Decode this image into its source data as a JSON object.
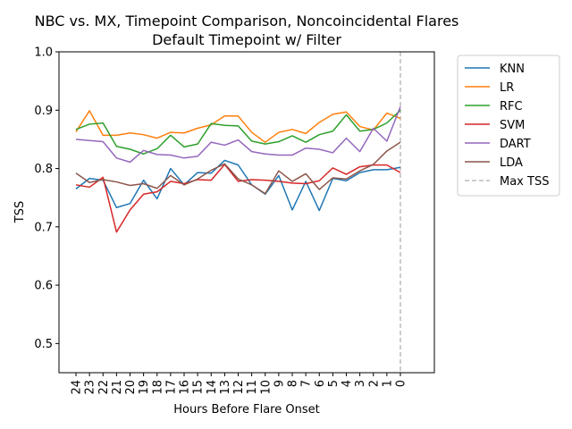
{
  "chart_data": {
    "type": "line",
    "title": "NBC vs. MX, Timepoint Comparison, Noncoincidental Flares",
    "subtitle": "Default Timepoint w/ Filter",
    "xlabel": "Hours Before Flare Onset",
    "ylabel": "TSS",
    "ylim": [
      0.45,
      1.0
    ],
    "yticks": [
      "0.5",
      "0.6",
      "0.7",
      "0.8",
      "0.9",
      "1.0"
    ],
    "x": [
      24,
      23,
      22,
      21,
      20,
      19,
      18,
      17,
      16,
      15,
      14,
      13,
      12,
      11,
      10,
      9,
      8,
      7,
      6,
      5,
      4,
      3,
      2,
      1,
      0
    ],
    "x_tick_labels": [
      "24",
      "23",
      "22",
      "21",
      "20",
      "19",
      "18",
      "17",
      "16",
      "15",
      "14",
      "13",
      "12",
      "11",
      "10",
      "9",
      "8",
      "7",
      "6",
      "5",
      "4",
      "3",
      "2",
      "1",
      "0"
    ],
    "legend_position": "outside-right-top",
    "grid": false,
    "series": [
      {
        "name": "KNN",
        "color": "#1f77b4",
        "values": [
          0.765,
          0.783,
          0.78,
          0.733,
          0.74,
          0.78,
          0.748,
          0.8,
          0.772,
          0.793,
          0.792,
          0.814,
          0.806,
          0.772,
          0.756,
          0.788,
          0.729,
          0.778,
          0.728,
          0.783,
          0.779,
          0.793,
          0.798,
          0.798,
          0.802
        ]
      },
      {
        "name": "LR",
        "color": "#ff7f0e",
        "values": [
          0.863,
          0.899,
          0.857,
          0.857,
          0.861,
          0.858,
          0.852,
          0.862,
          0.861,
          0.869,
          0.875,
          0.89,
          0.89,
          0.862,
          0.845,
          0.862,
          0.867,
          0.86,
          0.879,
          0.893,
          0.897,
          0.872,
          0.866,
          0.895,
          0.886
        ]
      },
      {
        "name": "RFC",
        "color": "#2ca02c",
        "values": [
          0.867,
          0.876,
          0.878,
          0.838,
          0.833,
          0.825,
          0.834,
          0.857,
          0.837,
          0.842,
          0.877,
          0.874,
          0.873,
          0.847,
          0.842,
          0.846,
          0.856,
          0.845,
          0.858,
          0.864,
          0.892,
          0.864,
          0.867,
          0.878,
          0.9
        ]
      },
      {
        "name": "SVM",
        "color": "#d62728",
        "values": [
          0.772,
          0.768,
          0.785,
          0.691,
          0.729,
          0.756,
          0.76,
          0.778,
          0.774,
          0.781,
          0.78,
          0.807,
          0.778,
          0.781,
          0.78,
          0.778,
          0.775,
          0.774,
          0.779,
          0.801,
          0.79,
          0.803,
          0.806,
          0.806,
          0.793
        ]
      },
      {
        "name": "DART",
        "color": "#9467bd",
        "values": [
          0.85,
          0.848,
          0.846,
          0.818,
          0.811,
          0.831,
          0.824,
          0.823,
          0.818,
          0.821,
          0.845,
          0.84,
          0.849,
          0.829,
          0.825,
          0.823,
          0.823,
          0.835,
          0.833,
          0.827,
          0.852,
          0.829,
          0.869,
          0.847,
          0.906
        ]
      },
      {
        "name": "LDA",
        "color": "#8c564b",
        "values": [
          0.792,
          0.776,
          0.781,
          0.777,
          0.771,
          0.774,
          0.766,
          0.788,
          0.772,
          0.782,
          0.797,
          0.808,
          0.782,
          0.772,
          0.757,
          0.796,
          0.778,
          0.791,
          0.764,
          0.784,
          0.782,
          0.796,
          0.807,
          0.83,
          0.845
        ]
      }
    ],
    "reference_line": {
      "name": "Max TSS",
      "x": 0,
      "color": "#bbbbbb",
      "style": "dashed"
    }
  }
}
